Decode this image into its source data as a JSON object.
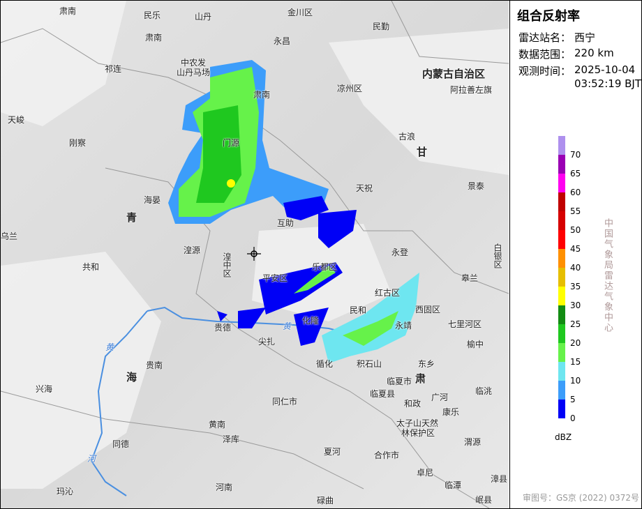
{
  "panel": {
    "title": "组合反射率",
    "info": [
      {
        "label": "雷达站名：",
        "lines": [
          "西宁"
        ]
      },
      {
        "label": "数据范围：",
        "lines": [
          "220 km"
        ]
      },
      {
        "label": "观测时间：",
        "lines": [
          "2025-10-04",
          "03:52:19 BJT"
        ]
      }
    ],
    "legend": {
      "unit": "dBZ",
      "ticks": [
        0,
        5,
        10,
        15,
        20,
        25,
        30,
        35,
        40,
        45,
        50,
        55,
        60,
        65,
        70
      ],
      "colors": [
        "#0000f6",
        "#3c9dfa",
        "#6ee6f0",
        "#66f24a",
        "#1fc81f",
        "#138c13",
        "#ffff00",
        "#e6be00",
        "#ff9000",
        "#ff0000",
        "#d60000",
        "#c00000",
        "#ff00f0",
        "#9a00b4",
        "#ae90ee"
      ]
    },
    "credit": "中国气象局雷达气象中心",
    "approval": "审图号：GS京 (2022) 0372号"
  },
  "map_labels": [
    "肃南",
    "民乐",
    "山丹",
    "金川区",
    "民勤",
    "肃南",
    "永昌",
    "祁连",
    "中农发",
    "山丹马场",
    "内蒙古自治区",
    "凉州区",
    "阿拉善左旗",
    "肃南",
    "天峻",
    "刚察",
    "古浪",
    "甘",
    "门源",
    "天祝",
    "景泰",
    "海晏",
    "青",
    "乌兰",
    "互助",
    "湟源",
    "永登",
    "共和",
    "湟中区",
    "乐都区",
    "白银区",
    "皋兰",
    "平安区",
    "红古区",
    "西固区",
    "七里河区",
    "民和",
    "永靖",
    "榆中",
    "贵德",
    "化隆",
    "尖扎",
    "循化",
    "积石山",
    "东乡",
    "肃",
    "临夏市",
    "海",
    "兴海",
    "贵南",
    "临夏县",
    "同仁市",
    "和政",
    "广河",
    "康乐",
    "临洮",
    "太子山天然",
    "林保护区",
    "泽库",
    "黄南",
    "同德",
    "夏河",
    "合作市",
    "渭源",
    "卓尼",
    "临潭",
    "漳县",
    "河南",
    "玛沁",
    "碌曲",
    "岷县",
    "黄",
    "河",
    "黄"
  ]
}
